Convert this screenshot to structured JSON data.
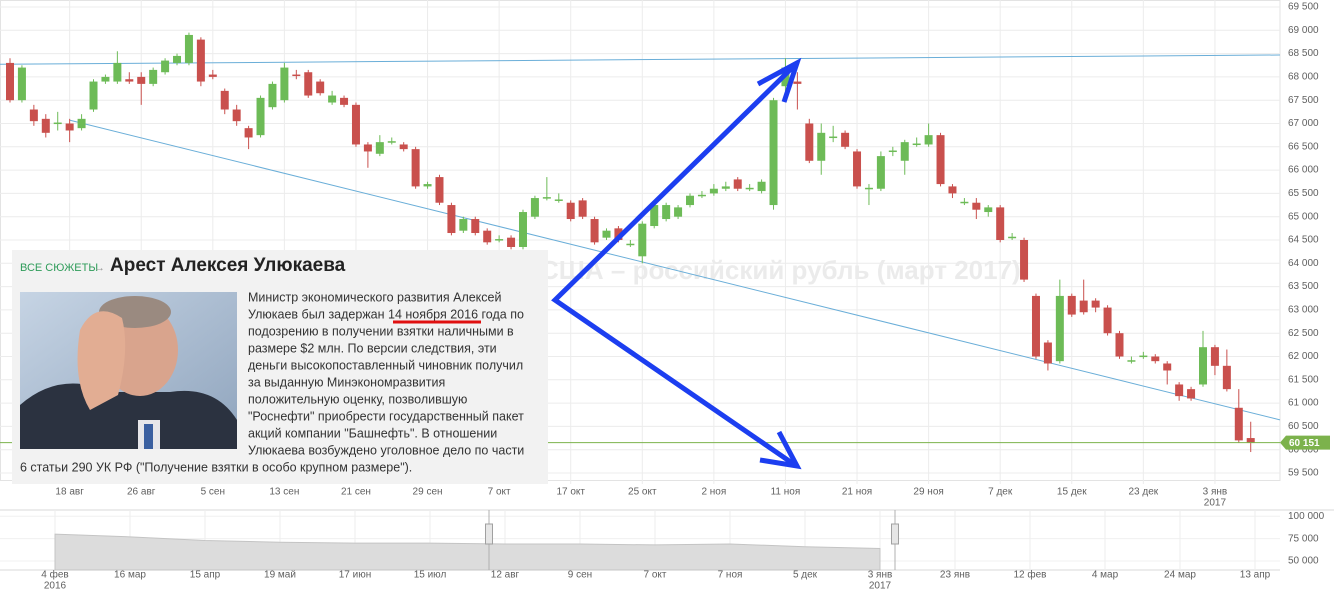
{
  "chart_data": [
    {
      "type": "candlestick",
      "watermark": "США – российский рубль (март 2017)",
      "categories": [
        null,
        null,
        null,
        null,
        null,
        "18 авг",
        null,
        null,
        null,
        null,
        null,
        "26 авг",
        null,
        null,
        null,
        null,
        null,
        "5 сен",
        null,
        null,
        null,
        null,
        null,
        "13 сен",
        null,
        null,
        null,
        null,
        null,
        "21 сен",
        null,
        null,
        null,
        null,
        null,
        "29 сен",
        null,
        null,
        null,
        null,
        null,
        "7 окт",
        null,
        null,
        null,
        null,
        null,
        "17 окт",
        null,
        null,
        null,
        null,
        null,
        "25 окт",
        null,
        null,
        null,
        null,
        null,
        "2 ноя",
        null,
        null,
        null,
        null,
        null,
        "11 ноя",
        null,
        null,
        null,
        null,
        null,
        "21 ноя",
        null,
        null,
        null,
        null,
        null,
        "29 ноя",
        null,
        null,
        null,
        null,
        null,
        "7 дек",
        null,
        null,
        null,
        null,
        null,
        "15 дек",
        null,
        null,
        null,
        null,
        null,
        "23 дек",
        null,
        null,
        null,
        null,
        null,
        "3 янв",
        null,
        null,
        null
      ],
      "x_year_label": "2017",
      "open": [
        68300,
        67500,
        67300,
        67100,
        67000,
        67000,
        66900,
        67300,
        67900,
        67900,
        67950,
        68000,
        67850,
        68100,
        68300,
        68300,
        68800,
        68050,
        67700,
        67300,
        66900,
        66750,
        67350,
        67500,
        68050,
        68100,
        67900,
        67450,
        67550,
        67400,
        66550,
        66350,
        66600,
        66550,
        66450,
        65650,
        65850,
        65250,
        64700,
        64950,
        64700,
        64500,
        64550,
        64350,
        65000,
        65400,
        65350,
        65300,
        65350,
        64950,
        64550,
        64750,
        64400,
        64150,
        64800,
        64950,
        65000,
        65250,
        65450,
        65500,
        65600,
        65800,
        65600,
        65550,
        65250,
        67800,
        67900,
        67000,
        66200,
        66700,
        66800,
        66400,
        65600,
        65600,
        66400,
        66200,
        66550,
        66550,
        66750,
        65650,
        65300,
        65300,
        65100,
        65200,
        64550,
        64500,
        63300,
        62300,
        61900,
        63300,
        63200,
        63200,
        63050,
        62500,
        61900,
        62000,
        62000,
        61850,
        61400,
        61300,
        61400,
        62200,
        61800,
        60900,
        60250
      ],
      "high": [
        68400,
        68250,
        67400,
        67200,
        67250,
        67100,
        67200,
        67950,
        68050,
        68550,
        68100,
        68100,
        68200,
        68400,
        68500,
        68950,
        68850,
        68150,
        67750,
        67400,
        66950,
        67600,
        67900,
        68300,
        68150,
        68150,
        67950,
        67700,
        67600,
        67450,
        66600,
        66750,
        66700,
        66600,
        66500,
        65750,
        65900,
        65300,
        65000,
        65000,
        64750,
        64600,
        64600,
        65150,
        65450,
        65850,
        65500,
        65350,
        65400,
        65000,
        64750,
        64800,
        64500,
        64900,
        65300,
        65300,
        65250,
        65500,
        65550,
        65700,
        65750,
        65850,
        65700,
        65800,
        67550,
        68400,
        68100,
        67100,
        67000,
        66950,
        66850,
        66450,
        65700,
        66400,
        66500,
        66650,
        66700,
        67000,
        66800,
        65700,
        65400,
        65400,
        65250,
        65250,
        64650,
        64550,
        63350,
        62350,
        63650,
        63350,
        63650,
        63250,
        63100,
        62550,
        62000,
        62100,
        62050,
        61900,
        61450,
        61350,
        62550,
        62250,
        62150,
        61300,
        60600
      ],
      "low": [
        67450,
        67450,
        66950,
        66700,
        66850,
        66600,
        66850,
        67250,
        67850,
        67850,
        67850,
        67400,
        67800,
        68050,
        68250,
        68250,
        67800,
        67950,
        67200,
        66950,
        66450,
        66700,
        67300,
        67450,
        67950,
        67550,
        67600,
        67400,
        67350,
        66500,
        66050,
        66300,
        66550,
        66400,
        65600,
        65600,
        65250,
        64600,
        64650,
        64600,
        64400,
        64450,
        64300,
        64300,
        64950,
        65350,
        65300,
        64900,
        64950,
        64400,
        64500,
        64450,
        64350,
        64000,
        64750,
        64900,
        64950,
        65200,
        65400,
        65450,
        65550,
        65550,
        65550,
        65500,
        65150,
        67700,
        67300,
        66150,
        65900,
        66600,
        66450,
        65600,
        65250,
        65550,
        66300,
        65900,
        66500,
        66500,
        65650,
        65400,
        65250,
        64950,
        65000,
        64450,
        64500,
        63600,
        61950,
        61700,
        61850,
        62850,
        62900,
        62950,
        62450,
        61950,
        61850,
        61950,
        61850,
        61400,
        61050,
        61050,
        61350,
        61600,
        61250,
        60150,
        59950
      ],
      "close": [
        67500,
        68200,
        67050,
        66800,
        67020,
        66850,
        67100,
        67900,
        68000,
        68300,
        67900,
        67850,
        68150,
        68350,
        68450,
        68900,
        67900,
        68000,
        67300,
        67050,
        66700,
        67550,
        67850,
        68200,
        68020,
        67600,
        67650,
        67600,
        67400,
        66550,
        66400,
        66600,
        66620,
        66450,
        65650,
        65700,
        65300,
        64650,
        64950,
        64650,
        64450,
        64520,
        64350,
        65100,
        65400,
        65420,
        65370,
        64950,
        65000,
        64450,
        64700,
        64500,
        64420,
        64850,
        65250,
        65250,
        65200,
        65450,
        65470,
        65600,
        65650,
        65600,
        65620,
        65750,
        67500,
        68200,
        67850,
        66200,
        66800,
        66720,
        66500,
        65650,
        65620,
        66300,
        66420,
        66600,
        66570,
        66750,
        65700,
        65500,
        65320,
        65150,
        65200,
        64500,
        64570,
        63650,
        62000,
        61850,
        63300,
        62900,
        62950,
        63050,
        62500,
        62000,
        61920,
        62020,
        61900,
        61700,
        61150,
        61100,
        62200,
        61800,
        61300,
        60200,
        60150
      ],
      "up_color": "#6dbb57",
      "down_color": "#c9504d",
      "ylim": [
        59350,
        69650
      ],
      "yticks": [
        {
          "value": 59500,
          "label": "59 500"
        },
        {
          "value": 60000,
          "label": "60 000"
        },
        {
          "value": 60500,
          "label": "60 500"
        },
        {
          "value": 61000,
          "label": "61 000"
        },
        {
          "value": 61500,
          "label": "61 500"
        },
        {
          "value": 62000,
          "label": "62 000"
        },
        {
          "value": 62500,
          "label": "62 500"
        },
        {
          "value": 63000,
          "label": "63 000"
        },
        {
          "value": 63500,
          "label": "63 500"
        },
        {
          "value": 64000,
          "label": "64 000"
        },
        {
          "value": 64500,
          "label": "64 500"
        },
        {
          "value": 65000,
          "label": "65 000"
        },
        {
          "value": 65500,
          "label": "65 500"
        },
        {
          "value": 66000,
          "label": "66 000"
        },
        {
          "value": 66500,
          "label": "66 500"
        },
        {
          "value": 67000,
          "label": "67 000"
        },
        {
          "value": 67500,
          "label": "67 500"
        },
        {
          "value": 68000,
          "label": "68 000"
        },
        {
          "value": 68500,
          "label": "68 500"
        },
        {
          "value": 69000,
          "label": "69 000"
        },
        {
          "value": 69500,
          "label": "69 500"
        }
      ],
      "grid": true,
      "last_price": {
        "value": 60151,
        "label": "60 151",
        "color": "#7cb24c"
      },
      "trendlines": [
        {
          "values": [
            68270,
            68470
          ],
          "color": "#6aaed8"
        },
        {
          "values": [
            67070,
            60640
          ],
          "color": "#6aaed8"
        }
      ]
    },
    {
      "type": "area",
      "categories": [
        "4 фев",
        "16 мар",
        "15 апр",
        "19 май",
        "17 июн",
        "15 июл",
        "12 авг",
        "9 сен",
        "7 окт",
        "7 ноя",
        "5 дек",
        "3 янв",
        "23 янв",
        "12 фев",
        "4 мар",
        "24 мар",
        "13 апр"
      ],
      "year_labels": [
        "2016",
        "2017"
      ],
      "values": [
        80000,
        77000,
        73000,
        71000,
        70000,
        70000,
        69000,
        69000,
        68000,
        69000,
        66000,
        64000,
        null,
        null,
        null,
        null,
        null
      ],
      "color": "#dcdcdc",
      "ylim": [
        40000,
        107000
      ],
      "yticks": [
        {
          "value": 50000,
          "label": "50 000"
        },
        {
          "value": 75000,
          "label": "75 000"
        },
        {
          "value": 100000,
          "label": "100 000"
        }
      ]
    }
  ],
  "news_card": {
    "section_link": "ВСЕ СЮЖЕТЫ",
    "arrow": "→",
    "title": "Арест Алексея Улюкаева",
    "body_lines": [
      "Министр экономического развития Алексей",
      "Улюкаев был задержан 14 ноября 2016 года по",
      "подозрению в получении взятки наличными в",
      "размере $2 млн. По версии следствия, эти",
      "деньги высокопоставленный чиновник получил",
      "за выданную Минэкономразвития",
      "положительную оценку, позволившую",
      "\"Роснефти\" приобрести государственный пакет",
      "акций компании \"Башнефть\". В отношении",
      "Улюкаева возбуждено уголовное дело по части",
      "6 статьи 290 УК РФ (\"Получение взятки в особо крупном размере\")."
    ]
  }
}
